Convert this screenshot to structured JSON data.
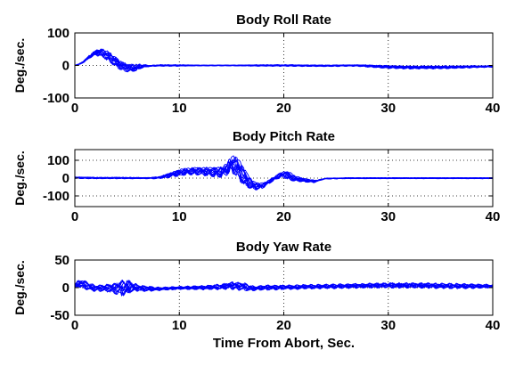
{
  "chart_data": [
    {
      "type": "line",
      "title": "Body Roll Rate",
      "ylabel": "Deg./sec.",
      "xlabel": "",
      "xlim": [
        0,
        40
      ],
      "ylim": [
        -100,
        100
      ],
      "xticks": [
        0,
        10,
        20,
        30,
        40
      ],
      "yticks": [
        -100,
        0,
        100
      ],
      "ytick_labels": [
        "-100",
        "0",
        "100"
      ],
      "grid": true,
      "line_color": "#0000ff",
      "series_count": 12,
      "envelope": {
        "x": [
          0,
          0.5,
          1.0,
          1.5,
          2.0,
          2.5,
          3.0,
          3.5,
          4.0,
          4.5,
          5.0,
          5.5,
          6.0,
          6.5,
          7.0,
          8.0,
          10,
          12,
          15,
          18,
          20,
          24,
          27,
          28,
          30,
          32,
          35,
          38,
          40
        ],
        "upper": [
          0,
          8,
          22,
          38,
          48,
          50,
          44,
          32,
          18,
          8,
          4,
          2,
          3,
          2,
          0,
          2,
          2,
          1,
          1,
          2,
          2,
          1,
          2,
          1,
          -1,
          -2,
          -2,
          -1,
          -1
        ],
        "lower": [
          0,
          2,
          10,
          22,
          30,
          30,
          22,
          10,
          -2,
          -12,
          -18,
          -20,
          -16,
          -8,
          -4,
          -2,
          -2,
          -1,
          -1,
          -2,
          -2,
          -3,
          -2,
          -4,
          -8,
          -10,
          -10,
          -7,
          -5
        ]
      }
    },
    {
      "type": "line",
      "title": "Body Pitch Rate",
      "ylabel": "Deg./sec.",
      "xlabel": "",
      "xlim": [
        0,
        40
      ],
      "ylim": [
        -160,
        160
      ],
      "xticks": [
        0,
        10,
        20,
        30,
        40
      ],
      "yticks": [
        -100,
        0,
        100
      ],
      "ytick_labels": [
        "-100",
        "0",
        "100"
      ],
      "grid": true,
      "line_color": "#0000ff",
      "series_count": 12,
      "envelope": {
        "x": [
          0,
          2,
          5,
          7,
          8,
          9,
          10,
          11,
          12,
          13,
          14,
          14.5,
          15,
          15.5,
          16,
          16.5,
          17,
          17.5,
          18,
          18.5,
          19,
          19.5,
          20,
          20.5,
          21,
          22,
          23,
          24,
          26,
          30,
          35,
          40
        ],
        "upper": [
          6,
          4,
          4,
          3,
          8,
          30,
          50,
          58,
          60,
          58,
          62,
          95,
          125,
          110,
          60,
          10,
          -20,
          -30,
          -25,
          -10,
          10,
          28,
          38,
          30,
          10,
          -5,
          -12,
          0,
          2,
          2,
          2,
          2
        ],
        "lower": [
          -2,
          -3,
          -3,
          -3,
          -3,
          2,
          12,
          20,
          18,
          12,
          5,
          10,
          30,
          20,
          -20,
          -45,
          -60,
          -65,
          -60,
          -40,
          -20,
          -5,
          5,
          -5,
          -15,
          -20,
          -25,
          -5,
          -3,
          -3,
          -3,
          -3
        ]
      }
    },
    {
      "type": "line",
      "title": "Body Yaw Rate",
      "ylabel": "Deg./sec.",
      "xlabel": "Time From Abort, Sec.",
      "xlim": [
        0,
        40
      ],
      "ylim": [
        -50,
        50
      ],
      "xticks": [
        0,
        10,
        20,
        30,
        40
      ],
      "yticks": [
        -50,
        0,
        50
      ],
      "ytick_labels": [
        "-50",
        "0",
        "50"
      ],
      "grid": true,
      "line_color": "#0000ff",
      "series_count": 12,
      "envelope": {
        "x": [
          0,
          0.5,
          1.0,
          1.5,
          2.0,
          3.0,
          4.0,
          4.5,
          5.0,
          5.5,
          6.0,
          7.0,
          8.0,
          10,
          12,
          14,
          15,
          16,
          17,
          18,
          20,
          22,
          25,
          28,
          30,
          33,
          36,
          38,
          40
        ],
        "upper": [
          10,
          14,
          10,
          6,
          4,
          5,
          8,
          14,
          12,
          8,
          4,
          2,
          0,
          2,
          3,
          6,
          10,
          8,
          2,
          4,
          4,
          5,
          6,
          7,
          8,
          8,
          7,
          6,
          5
        ],
        "lower": [
          -4,
          2,
          -2,
          -4,
          -6,
          -6,
          -10,
          -14,
          -12,
          -8,
          -6,
          -6,
          -5,
          -3,
          -3,
          -3,
          -2,
          -4,
          -5,
          -4,
          -3,
          -2,
          -1,
          0,
          0,
          0,
          -1,
          -1,
          0
        ]
      }
    }
  ]
}
